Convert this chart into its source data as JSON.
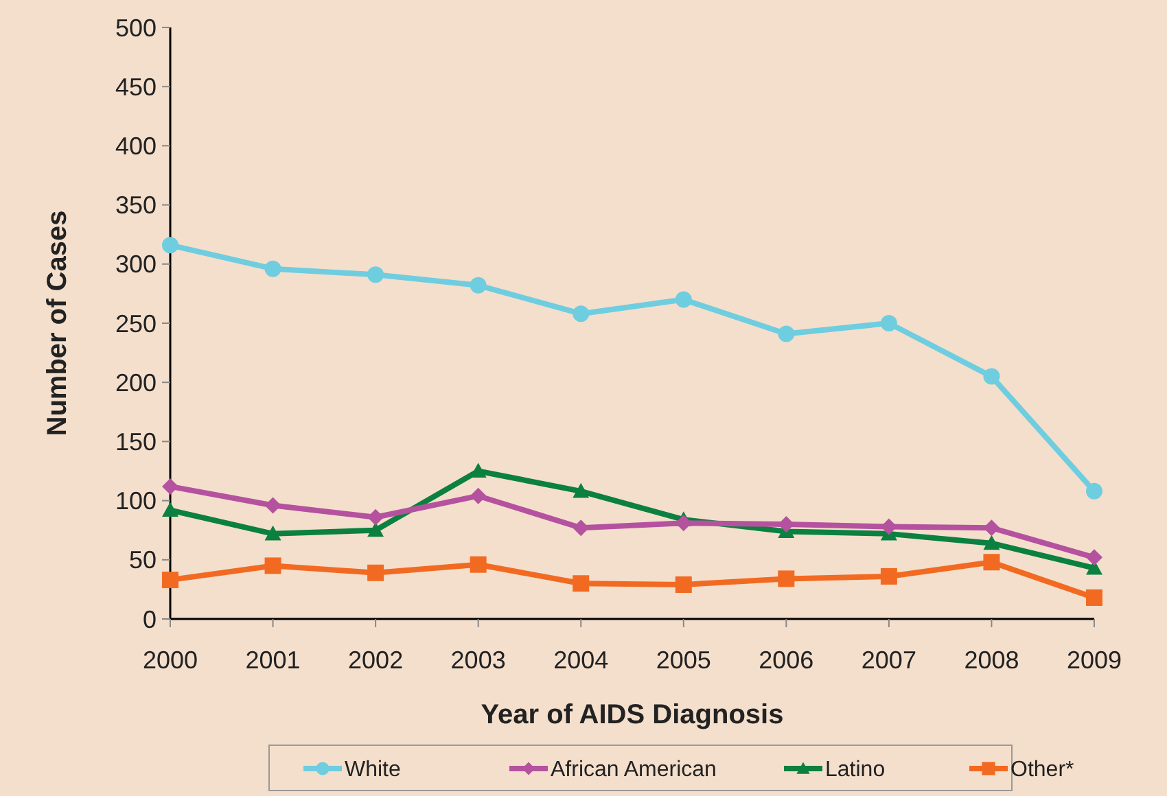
{
  "chart_data": {
    "type": "line",
    "xlabel": "Year of AIDS Diagnosis",
    "ylabel": "Number of Cases",
    "x": [
      2000,
      2001,
      2002,
      2003,
      2004,
      2005,
      2006,
      2007,
      2008,
      2009
    ],
    "xlim": [
      2000,
      2009
    ],
    "xticks": [
      2000,
      2001,
      2002,
      2003,
      2004,
      2005,
      2006,
      2007,
      2008,
      2009
    ],
    "ylim": [
      0,
      500
    ],
    "yticks": [
      0,
      50,
      100,
      150,
      200,
      250,
      300,
      350,
      400,
      450,
      500
    ],
    "grid": false,
    "legend": "bottom",
    "line_style": "solid",
    "series": [
      {
        "name": "White",
        "color": "#6fcde0",
        "marker": "circle",
        "values": [
          316,
          296,
          291,
          282,
          258,
          270,
          241,
          250,
          205,
          108
        ]
      },
      {
        "name": "African American",
        "color": "#b5529f",
        "marker": "diamond",
        "values": [
          112,
          96,
          86,
          104,
          77,
          81,
          80,
          78,
          77,
          52
        ]
      },
      {
        "name": "Latino",
        "color": "#0b8040",
        "marker": "triangle",
        "values": [
          92,
          72,
          75,
          125,
          108,
          84,
          74,
          72,
          64,
          43
        ]
      },
      {
        "name": "Other*",
        "color": "#f26a22",
        "marker": "square",
        "values": [
          33,
          45,
          39,
          46,
          30,
          29,
          34,
          36,
          48,
          18
        ]
      }
    ]
  }
}
